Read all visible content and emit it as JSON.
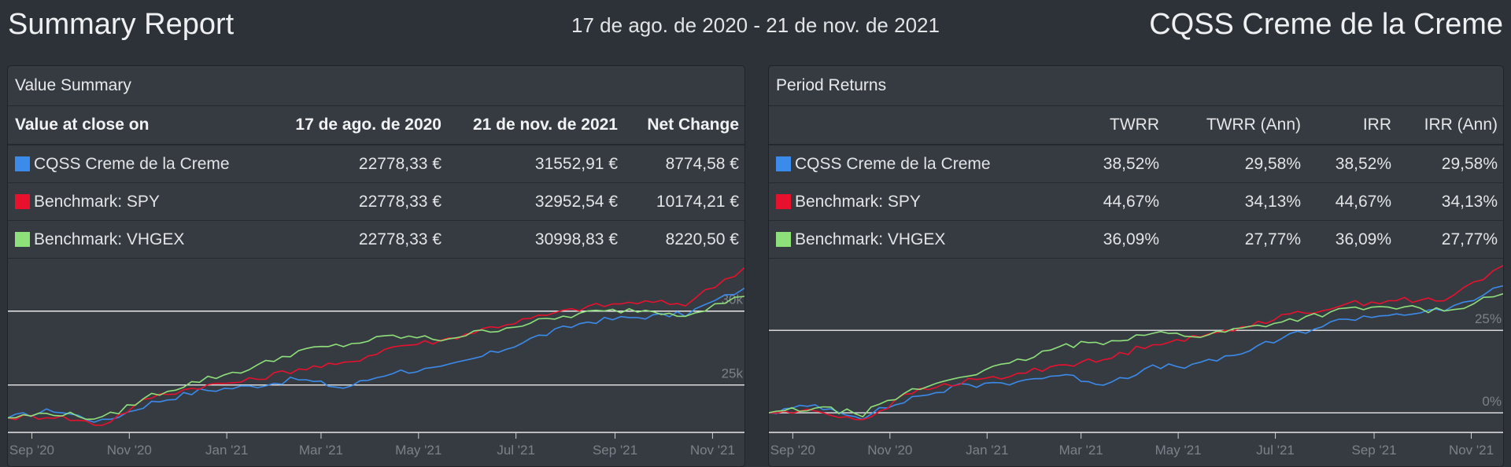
{
  "header": {
    "title": "Summary Report",
    "date_range": "17 de ago. de 2020 - 21 de nov. de 2021",
    "portfolio_name": "CQSS Creme de la Creme"
  },
  "colors": {
    "portfolio": "#3b8beb",
    "spy": "#e8112d",
    "vhgex": "#8ee07a"
  },
  "value_summary": {
    "title": "Value Summary",
    "columns": [
      "Value at close on",
      "17 de ago. de 2020",
      "21 de nov. de 2021",
      "Net Change"
    ],
    "rows": [
      {
        "name": "CQSS Creme de la Creme",
        "start": "22778,33 €",
        "end": "31552,91 €",
        "change": "8774,58 €"
      },
      {
        "name": "Benchmark: SPY",
        "start": "22778,33 €",
        "end": "32952,54 €",
        "change": "10174,21 €"
      },
      {
        "name": "Benchmark: VHGEX",
        "start": "22778,33 €",
        "end": "30998,83 €",
        "change": "8220,50 €"
      }
    ]
  },
  "period_returns": {
    "title": "Period Returns",
    "columns": [
      "",
      "TWRR",
      "TWRR (Ann)",
      "IRR",
      "IRR (Ann)"
    ],
    "rows": [
      {
        "name": "CQSS Creme de la Creme",
        "twrr": "38,52%",
        "twrr_ann": "29,58%",
        "irr": "38,52%",
        "irr_ann": "29,58%"
      },
      {
        "name": "Benchmark: SPY",
        "twrr": "44,67%",
        "twrr_ann": "34,13%",
        "irr": "44,67%",
        "irr_ann": "34,13%"
      },
      {
        "name": "Benchmark: VHGEX",
        "twrr": "36,09%",
        "twrr_ann": "27,77%",
        "irr": "36,09%",
        "irr_ann": "27,77%"
      }
    ]
  },
  "chart_data": [
    {
      "type": "line",
      "x": [
        "2020-08-17",
        "2020-09-15",
        "2020-10-15",
        "2020-11-15",
        "2020-12-15",
        "2021-01-15",
        "2021-02-15",
        "2021-03-15",
        "2021-04-15",
        "2021-05-15",
        "2021-06-15",
        "2021-07-15",
        "2021-08-15",
        "2021-09-15",
        "2021-10-15",
        "2021-11-21"
      ],
      "x_ticks": [
        "Sep '20",
        "Nov '20",
        "Jan '21",
        "Mar '21",
        "May '21",
        "Jul '21",
        "Sep '21",
        "Nov '21"
      ],
      "y_ticks": [
        "25k",
        "30k"
      ],
      "ylim": [
        22000,
        33500
      ],
      "series": [
        {
          "name": "CQSS Creme de la Creme",
          "values": [
            22778,
            23300,
            22500,
            23800,
            24600,
            24900,
            25400,
            24800,
            25900,
            26100,
            27100,
            28300,
            29300,
            29600,
            29800,
            31553
          ]
        },
        {
          "name": "Benchmark: SPY",
          "values": [
            22778,
            22900,
            22300,
            24200,
            24900,
            25300,
            26100,
            26400,
            27600,
            28000,
            28900,
            29600,
            30300,
            30600,
            30500,
            32953
          ]
        },
        {
          "name": "Benchmark: VHGEX",
          "values": [
            22778,
            23100,
            22700,
            24300,
            25300,
            26100,
            27300,
            27700,
            28300,
            28100,
            28700,
            29300,
            29900,
            30100,
            29800,
            30999
          ]
        }
      ]
    },
    {
      "type": "line",
      "x": [
        "2020-08-17",
        "2020-09-15",
        "2020-10-15",
        "2020-11-15",
        "2020-12-15",
        "2021-01-15",
        "2021-02-15",
        "2021-03-15",
        "2021-04-15",
        "2021-05-15",
        "2021-06-15",
        "2021-07-15",
        "2021-08-15",
        "2021-09-15",
        "2021-10-15",
        "2021-11-21"
      ],
      "x_ticks": [
        "Sep '20",
        "Nov '20",
        "Jan '21",
        "Mar '21",
        "May '21",
        "Jul '21",
        "Sep '21",
        "Nov '21"
      ],
      "y_ticks": [
        "0%",
        "25%"
      ],
      "ylim": [
        -5,
        47
      ],
      "series": [
        {
          "name": "CQSS Creme de la Creme",
          "values": [
            0,
            2.3,
            -1.2,
            4.5,
            8,
            9.3,
            11.5,
            8.9,
            13.7,
            14.6,
            19,
            24.2,
            28.6,
            30,
            30.8,
            38.52
          ]
        },
        {
          "name": "Benchmark: SPY",
          "values": [
            0,
            0.5,
            -2.1,
            6.2,
            9.3,
            11.1,
            14.6,
            15.9,
            21.2,
            22.9,
            26.9,
            30,
            33,
            34.3,
            33.9,
            44.67
          ]
        },
        {
          "name": "Benchmark: VHGEX",
          "values": [
            0,
            1.4,
            -0.3,
            6.7,
            11.1,
            14.6,
            19.9,
            21.6,
            24.2,
            23.4,
            26,
            28.6,
            31.3,
            32.1,
            30.8,
            36.09
          ]
        }
      ]
    }
  ]
}
